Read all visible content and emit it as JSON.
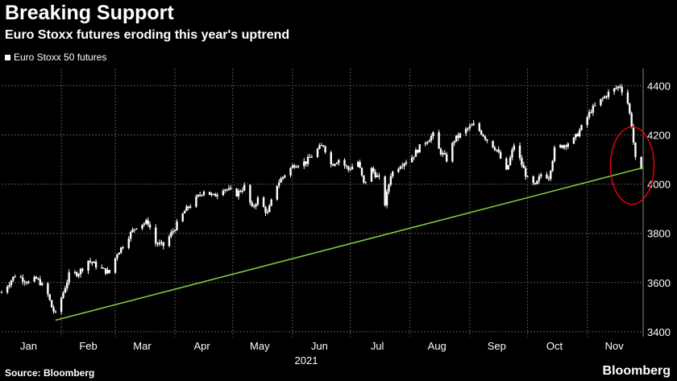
{
  "header": {
    "title": "Breaking Support",
    "subtitle": "Euro Stoxx futures eroding this year's uptrend"
  },
  "legend": {
    "label": "Euro Stoxx 50 futures",
    "color": "#ffffff"
  },
  "footer": {
    "source": "Source: Bloomberg",
    "brand": "Bloomberg"
  },
  "chart_data": {
    "type": "candlestick",
    "title": "Breaking Support",
    "subtitle": "Euro Stoxx futures eroding this year's uptrend",
    "xlabel": "2021",
    "ylabel": "",
    "x_ticks": [
      "Jan",
      "Feb",
      "Mar",
      "Apr",
      "May",
      "Jun",
      "Jul",
      "Aug",
      "Sep",
      "Oct",
      "Nov"
    ],
    "y_ticks": [
      3400,
      3600,
      3800,
      4000,
      4200,
      4400
    ],
    "ylim": [
      3380,
      4470
    ],
    "xlim": [
      "2021-01-01",
      "2021-11-30"
    ],
    "y_axis_side": "right",
    "grid": true,
    "legend_position": "top-left",
    "series": [
      {
        "name": "Euro Stoxx 50 futures",
        "color": "#ffffff",
        "points": [
          [
            "2021-01-01",
            3560
          ],
          [
            "2021-01-04",
            3590
          ],
          [
            "2021-01-08",
            3630
          ],
          [
            "2021-01-12",
            3615
          ],
          [
            "2021-01-15",
            3600
          ],
          [
            "2021-01-19",
            3615
          ],
          [
            "2021-01-21",
            3600
          ],
          [
            "2021-01-25",
            3550
          ],
          [
            "2021-01-27",
            3500
          ],
          [
            "2021-01-29",
            3470
          ],
          [
            "2021-02-02",
            3560
          ],
          [
            "2021-02-05",
            3630
          ],
          [
            "2021-02-10",
            3640
          ],
          [
            "2021-02-15",
            3690
          ],
          [
            "2021-02-19",
            3670
          ],
          [
            "2021-02-23",
            3650
          ],
          [
            "2021-02-26",
            3640
          ],
          [
            "2021-03-02",
            3720
          ],
          [
            "2021-03-05",
            3750
          ],
          [
            "2021-03-08",
            3790
          ],
          [
            "2021-03-12",
            3830
          ],
          [
            "2021-03-15",
            3840
          ],
          [
            "2021-03-18",
            3845
          ],
          [
            "2021-03-22",
            3760
          ],
          [
            "2021-03-26",
            3750
          ],
          [
            "2021-03-31",
            3810
          ],
          [
            "2021-04-06",
            3890
          ],
          [
            "2021-04-12",
            3940
          ],
          [
            "2021-04-16",
            3975
          ],
          [
            "2021-04-21",
            3950
          ],
          [
            "2021-04-26",
            3985
          ],
          [
            "2021-05-03",
            3960
          ],
          [
            "2021-05-07",
            3990
          ],
          [
            "2021-05-11",
            3900
          ],
          [
            "2021-05-14",
            3940
          ],
          [
            "2021-05-19",
            3880
          ],
          [
            "2021-05-24",
            4000
          ],
          [
            "2021-05-28",
            4040
          ],
          [
            "2021-06-02",
            4080
          ],
          [
            "2021-06-08",
            4090
          ],
          [
            "2021-06-14",
            4140
          ],
          [
            "2021-06-17",
            4160
          ],
          [
            "2021-06-21",
            4080
          ],
          [
            "2021-06-25",
            4100
          ],
          [
            "2021-06-30",
            4060
          ],
          [
            "2021-07-05",
            4090
          ],
          [
            "2021-07-08",
            4000
          ],
          [
            "2021-07-12",
            4060
          ],
          [
            "2021-07-16",
            4020
          ],
          [
            "2021-07-19",
            3920
          ],
          [
            "2021-07-22",
            4040
          ],
          [
            "2021-07-27",
            4080
          ],
          [
            "2021-08-02",
            4110
          ],
          [
            "2021-08-06",
            4150
          ],
          [
            "2021-08-10",
            4180
          ],
          [
            "2021-08-13",
            4200
          ],
          [
            "2021-08-16",
            4140
          ],
          [
            "2021-08-20",
            4100
          ],
          [
            "2021-08-24",
            4180
          ],
          [
            "2021-08-30",
            4220
          ],
          [
            "2021-09-03",
            4240
          ],
          [
            "2021-09-07",
            4210
          ],
          [
            "2021-09-10",
            4180
          ],
          [
            "2021-09-15",
            4140
          ],
          [
            "2021-09-20",
            4050
          ],
          [
            "2021-09-24",
            4160
          ],
          [
            "2021-09-28",
            4080
          ],
          [
            "2021-10-01",
            4020
          ],
          [
            "2021-10-05",
            3990
          ],
          [
            "2021-10-08",
            4040
          ],
          [
            "2021-10-12",
            4030
          ],
          [
            "2021-10-15",
            4140
          ],
          [
            "2021-10-20",
            4160
          ],
          [
            "2021-10-25",
            4180
          ],
          [
            "2021-10-29",
            4230
          ],
          [
            "2021-11-03",
            4300
          ],
          [
            "2021-11-08",
            4340
          ],
          [
            "2021-11-12",
            4370
          ],
          [
            "2021-11-16",
            4390
          ],
          [
            "2021-11-18",
            4400
          ],
          [
            "2021-11-22",
            4330
          ],
          [
            "2021-11-24",
            4240
          ],
          [
            "2021-11-26",
            4100
          ],
          [
            "2021-11-29",
            4050
          ],
          [
            "2021-11-30",
            4000
          ]
        ]
      },
      {
        "name": "",
        "type": "line",
        "color": "#7fd13b",
        "points": [
          [
            "2021-01-29",
            3447
          ],
          [
            "2021-11-30",
            4067
          ]
        ]
      }
    ],
    "annotations": [
      {
        "type": "ellipse",
        "color": "#e3000f",
        "center": [
          "2021-11-26",
          4075
        ]
      }
    ]
  }
}
